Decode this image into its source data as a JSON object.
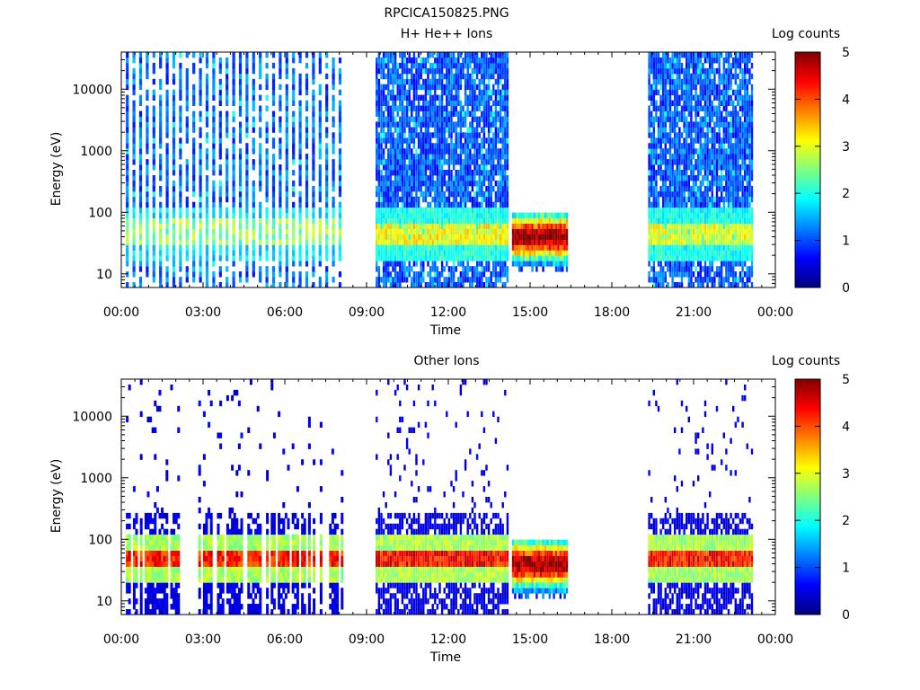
{
  "figure_title": "RPCICA150825.PNG",
  "colormap_stops": [
    "#00007f",
    "#0000ff",
    "#0080ff",
    "#00ffff",
    "#80ff80",
    "#ffff00",
    "#ff8000",
    "#ff0000",
    "#7f0000"
  ],
  "chart_data": [
    {
      "type": "heatmap",
      "title": "H+ He++ Ions",
      "xlabel": "Time",
      "ylabel": "Energy (eV)",
      "x_tick_labels": [
        "00:00",
        "03:00",
        "06:00",
        "09:00",
        "12:00",
        "15:00",
        "18:00",
        "21:00",
        "00:00"
      ],
      "xlim_hours": [
        0,
        24
      ],
      "y_scale": "log",
      "ylim": [
        6,
        40000
      ],
      "y_tick_labels": [
        "10",
        "100",
        "1000",
        "10000"
      ],
      "colorbar": {
        "label": "Log counts",
        "range": [
          0,
          5
        ],
        "tick_labels": [
          "0",
          "1",
          "2",
          "3",
          "4",
          "5"
        ]
      },
      "data_segments": [
        {
          "start": "00:10",
          "end": "08:10",
          "mode": "sparse stripes",
          "background_log_counts": 0.7,
          "peak_band_ev": [
            30,
            80
          ],
          "peak_log_counts": 2.6
        },
        {
          "start": "09:20",
          "end": "14:10",
          "mode": "dense",
          "background_log_counts": 0.6,
          "peak_band_ev": [
            30,
            70
          ],
          "peak_log_counts": 3.1
        },
        {
          "start": "14:20",
          "end": "16:20",
          "mode": "narrow energy range",
          "energy_range_ev": [
            12,
            100
          ],
          "peak_log_counts": 4.5
        },
        {
          "start": "19:20",
          "end": "23:10",
          "mode": "dense",
          "background_log_counts": 0.6,
          "peak_band_ev": [
            30,
            70
          ],
          "peak_log_counts": 3.0
        }
      ]
    },
    {
      "type": "heatmap",
      "title": "Other Ions",
      "xlabel": "Time",
      "ylabel": "Energy (eV)",
      "x_tick_labels": [
        "00:00",
        "03:00",
        "06:00",
        "09:00",
        "12:00",
        "15:00",
        "18:00",
        "21:00",
        "00:00"
      ],
      "xlim_hours": [
        0,
        24
      ],
      "y_scale": "log",
      "ylim": [
        6,
        40000
      ],
      "y_tick_labels": [
        "10",
        "100",
        "1000",
        "10000"
      ],
      "colorbar": {
        "label": "Log counts",
        "range": [
          0,
          5
        ],
        "tick_labels": [
          "0",
          "1",
          "2",
          "3",
          "4",
          "5"
        ]
      },
      "data_segments": [
        {
          "start": "00:10",
          "end": "08:10",
          "mode": "sparse",
          "background_log_counts": 0.3,
          "peak_band_ev": [
            35,
            70
          ],
          "peak_log_counts": 4.3
        },
        {
          "start": "09:20",
          "end": "14:10",
          "mode": "dense",
          "background_log_counts": 0.3,
          "peak_band_ev": [
            35,
            70
          ],
          "peak_log_counts": 4.4
        },
        {
          "start": "14:20",
          "end": "16:20",
          "mode": "narrow energy range",
          "energy_range_ev": [
            12,
            100
          ],
          "peak_log_counts": 4.5
        },
        {
          "start": "19:20",
          "end": "23:10",
          "mode": "dense",
          "background_log_counts": 0.3,
          "peak_band_ev": [
            35,
            70
          ],
          "peak_log_counts": 4.3
        }
      ]
    }
  ]
}
